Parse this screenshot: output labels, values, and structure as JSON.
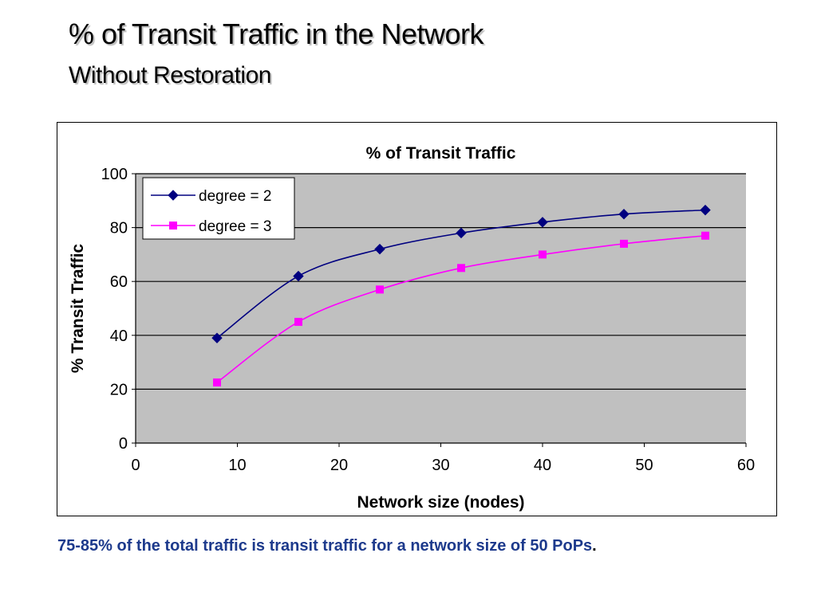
{
  "slide": {
    "title": "% of Transit Traffic in the Network",
    "subtitle": "Without Restoration",
    "caption": "75-85% of the total traffic is transit traffic for a network size of 50 PoPs",
    "caption_end": "."
  },
  "chart_data": {
    "type": "line",
    "title": "% of Transit Traffic",
    "xlabel": "Network size (nodes)",
    "ylabel": "% Transit Traffic",
    "xlim": [
      0,
      60
    ],
    "ylim": [
      0,
      100
    ],
    "xticks": [
      0,
      10,
      20,
      30,
      40,
      50,
      60
    ],
    "yticks": [
      0,
      20,
      40,
      60,
      80,
      100
    ],
    "grid": "horizontal",
    "legend_position": "top-left",
    "plot_background": "#c0c0c0",
    "series": [
      {
        "name": "degree = 2",
        "color": "#000080",
        "marker": "diamond",
        "x": [
          8,
          16,
          24,
          32,
          40,
          48,
          56
        ],
        "y": [
          39,
          62,
          72,
          78,
          82,
          85,
          86.5
        ]
      },
      {
        "name": "degree = 3",
        "color": "#ff00ff",
        "marker": "square",
        "x": [
          8,
          16,
          24,
          32,
          40,
          48,
          56
        ],
        "y": [
          22.5,
          45,
          57,
          65,
          70,
          74,
          77
        ]
      }
    ]
  }
}
